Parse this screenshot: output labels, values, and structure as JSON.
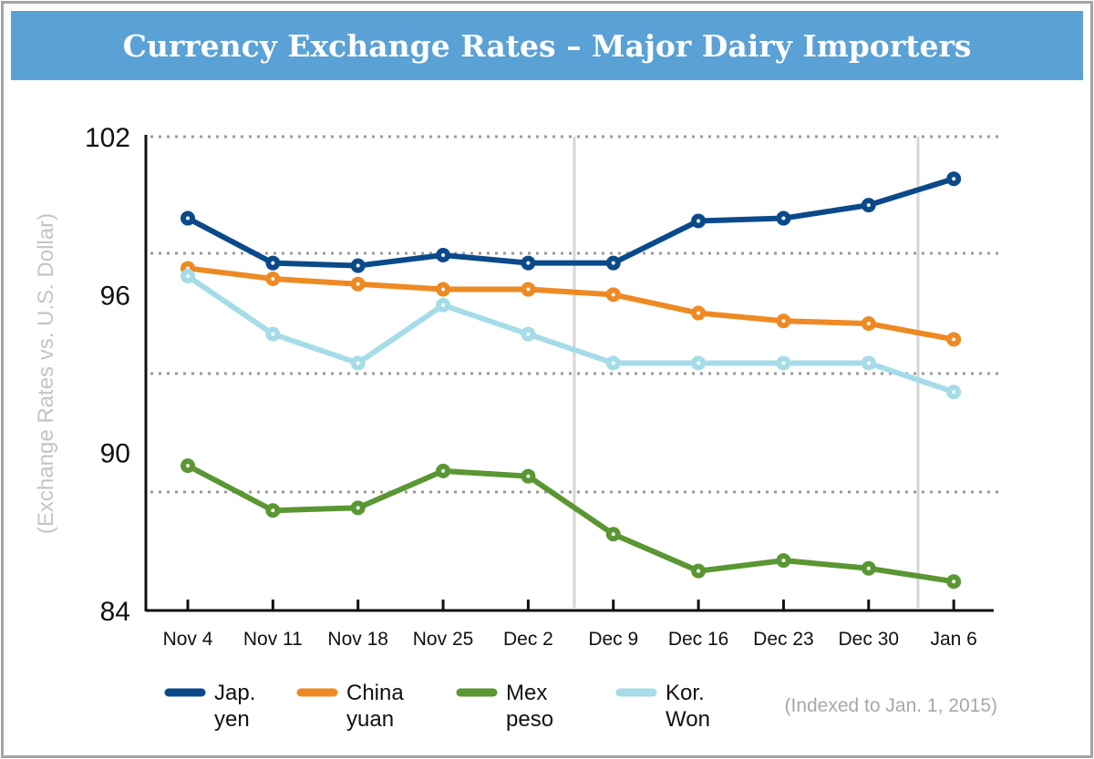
{
  "chart_data": {
    "type": "line",
    "title": "Currency Exchange Rates – Major Dairy Importers",
    "ylabel": "(Exchange Rates vs. U.S. Dollar)",
    "xlabel": "",
    "note": "(Indexed to Jan. 1, 2015)",
    "ylim": [
      84,
      102
    ],
    "yticks": [
      "102",
      "96",
      "90",
      "84"
    ],
    "grid": "dotted horizontal",
    "legend": "bottom",
    "categories": [
      "Nov 4",
      "Nov 11",
      "Nov 18",
      "Nov 25",
      "Dec 2",
      "Dec 9",
      "Dec 16",
      "Dec 23",
      "Dec 30",
      "Jan 6"
    ],
    "series": [
      {
        "name": "Jap. yen",
        "label_lines": [
          "Jap.",
          "yen"
        ],
        "color": "#0a4a8a",
        "values": [
          98.9,
          97.2,
          97.1,
          97.5,
          97.2,
          97.2,
          98.8,
          98.9,
          99.4,
          100.4
        ]
      },
      {
        "name": "China yuan",
        "label_lines": [
          "China",
          "yuan"
        ],
        "color": "#ee8a23",
        "values": [
          97.0,
          96.6,
          96.4,
          96.2,
          96.2,
          96.0,
          95.3,
          95.0,
          94.9,
          94.3
        ]
      },
      {
        "name": "Mex peso",
        "label_lines": [
          "Mex",
          "peso"
        ],
        "color": "#5a9632",
        "values": [
          89.5,
          87.8,
          87.9,
          89.3,
          89.1,
          86.9,
          85.5,
          85.9,
          85.6,
          85.1
        ]
      },
      {
        "name": "Kor. Won",
        "label_lines": [
          "Kor.",
          "Won"
        ],
        "color": "#a5dce8",
        "values": [
          96.7,
          94.5,
          93.4,
          95.6,
          94.5,
          93.4,
          93.4,
          93.4,
          93.4,
          92.3
        ]
      }
    ]
  }
}
